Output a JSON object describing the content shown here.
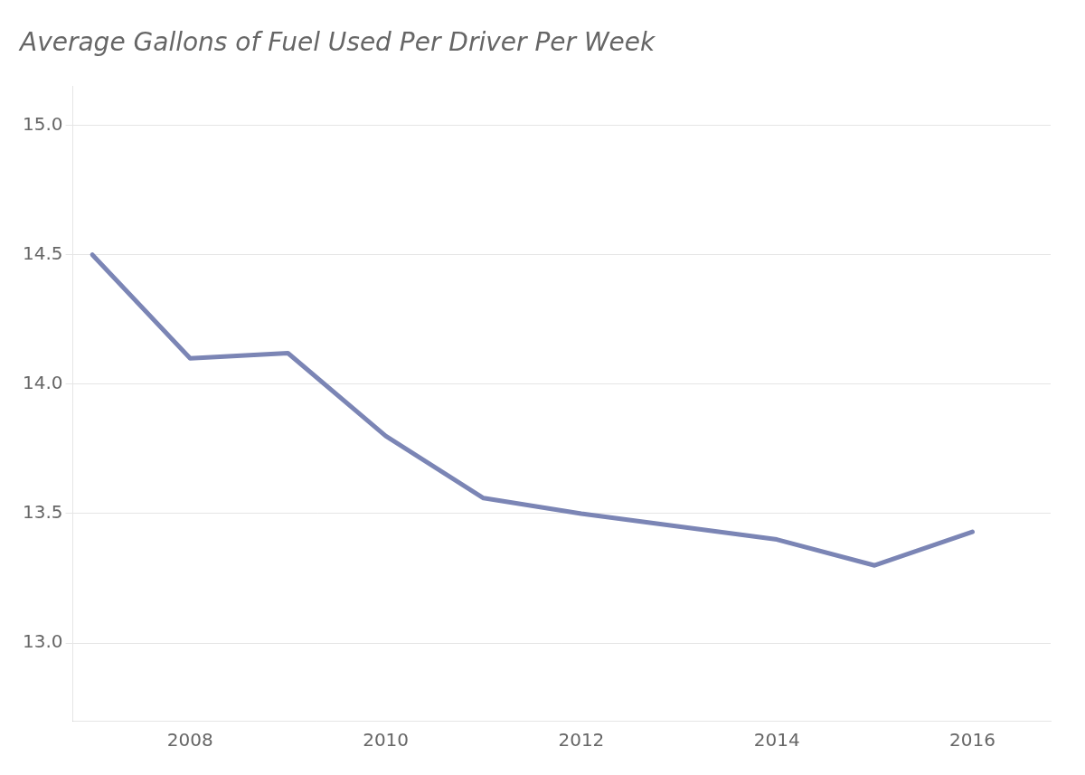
{
  "chart_data": {
    "type": "line",
    "title": "Average Gallons of Fuel Used Per Driver Per Week",
    "x": [
      2007,
      2008,
      2009,
      2010,
      2011,
      2012,
      2013,
      2014,
      2015,
      2016
    ],
    "values": [
      14.5,
      14.1,
      14.12,
      13.8,
      13.56,
      13.5,
      13.45,
      13.4,
      13.3,
      13.43
    ],
    "color": "#7b85b5",
    "xlim": [
      2006.8,
      2016.8
    ],
    "xticks": [
      2008,
      2010,
      2012,
      2014,
      2016
    ],
    "ylim": [
      12.7,
      15.15
    ],
    "yticks": [
      {
        "value": 13.0,
        "label": "13.0"
      },
      13.5,
      {
        "value": 14.0,
        "label": "14.0"
      },
      14.5,
      {
        "value": 15.0,
        "label": "15.0"
      }
    ],
    "grid": "y"
  }
}
